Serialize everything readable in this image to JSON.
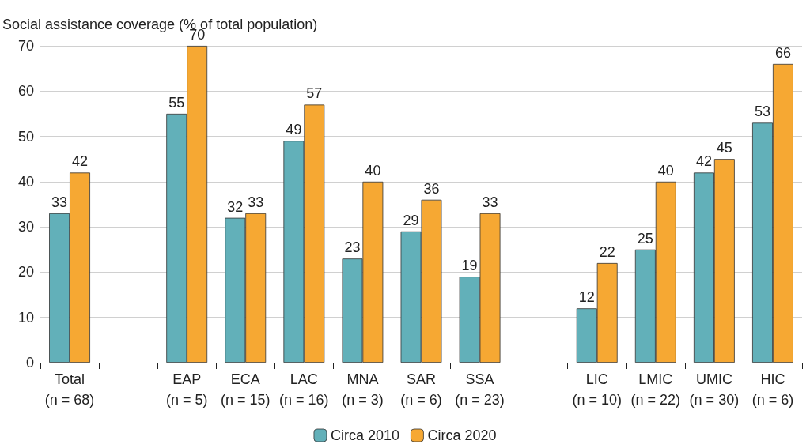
{
  "chart_data": {
    "type": "bar",
    "ylabel": "Social assistance coverage (% of total population)",
    "categories": [
      "Total\n(n = 68)",
      null,
      "EAP\n(n = 5)",
      "ECA\n(n = 15)",
      "LAC\n(n = 16)",
      "MNA\n(n = 3)",
      "SAR\n(n = 6)",
      "SSA\n(n = 23)",
      null,
      "LIC\n(n = 10)",
      "LMIC\n(n = 22)",
      "UMIC\n(n = 30)",
      "HIC\n(n = 6)"
    ],
    "series": [
      {
        "name": "Circa 2010",
        "color": "#62b0b9",
        "values": [
          33,
          null,
          55,
          32,
          49,
          23,
          29,
          19,
          null,
          12,
          25,
          42,
          53
        ]
      },
      {
        "name": "Circa 2020",
        "color": "#f6a833",
        "values": [
          42,
          null,
          70,
          33,
          57,
          40,
          36,
          33,
          null,
          22,
          40,
          45,
          66
        ]
      }
    ],
    "ylim": [
      0,
      70
    ],
    "yticks": [
      0,
      10,
      20,
      30,
      40,
      50,
      60,
      70
    ],
    "grid": "y",
    "legend": "bottom",
    "data_labels": true
  }
}
